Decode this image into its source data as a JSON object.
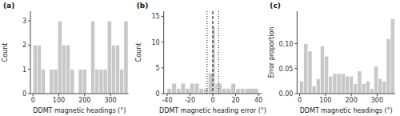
{
  "chart_data": [
    {
      "type": "histogram",
      "title": "(a)",
      "xlabel": "DDMT magnetic headings (°)",
      "ylabel": "Count",
      "bins": [
        0,
        16,
        32,
        48,
        64,
        80,
        96,
        112,
        128,
        144,
        160,
        176,
        192,
        208,
        224,
        240,
        256,
        272,
        288,
        304,
        320,
        336,
        352,
        368
      ],
      "values": [
        2,
        2,
        1,
        0,
        1,
        1,
        3,
        2,
        2,
        1,
        0,
        1,
        1,
        0,
        3,
        1,
        1,
        1,
        3,
        2,
        2,
        1,
        3
      ],
      "color": "#c8c8c8",
      "xlim": [
        -10,
        370
      ],
      "ylim": [
        0,
        3.4
      ],
      "xticks": [
        0,
        100,
        200,
        300
      ],
      "yticks": [
        0,
        1,
        2,
        3
      ],
      "grid": false
    },
    {
      "type": "histogram",
      "title": "(b)",
      "xlabel": "DDMT magnetic heading error (°)",
      "ylabel": "Count",
      "bins": [
        -40,
        -36,
        -32,
        -28,
        -24,
        -20,
        -16,
        -12,
        -8,
        -4,
        0,
        2,
        4,
        8,
        12,
        16,
        20,
        24,
        28,
        40
      ],
      "values": [
        1,
        2,
        1,
        2,
        1,
        2,
        2,
        1,
        1,
        4,
        13,
        2,
        2,
        1,
        1,
        2,
        1,
        1,
        1
      ],
      "color": "#c8c8c8",
      "xlim": [
        -43,
        43
      ],
      "ylim": [
        0,
        16
      ],
      "xticks": [
        -40,
        -20,
        0,
        20,
        40
      ],
      "yticks": [
        0,
        5,
        10,
        15
      ],
      "vlines": [
        {
          "value": 0,
          "line_style": "dashed"
        },
        {
          "value": -5,
          "line_style": "dotted"
        },
        {
          "value": 5,
          "line_style": "dotted"
        }
      ],
      "grid": false
    },
    {
      "type": "histogram",
      "title": "(c)",
      "xlabel": "DDMT magnetic headings (°)",
      "ylabel": "Error proportion",
      "bins": [
        0,
        16,
        32,
        48,
        64,
        80,
        96,
        112,
        128,
        144,
        160,
        176,
        192,
        208,
        224,
        240,
        256,
        272,
        288,
        304,
        320,
        336,
        352,
        368
      ],
      "values": [
        0.025,
        0.1,
        0.085,
        0.015,
        0.03,
        0.095,
        0.075,
        0.035,
        0.04,
        0.04,
        0.04,
        0.035,
        0.035,
        0.02,
        0.045,
        0.02,
        0.025,
        0.01,
        0.055,
        0.03,
        0.025,
        0.11,
        0.15
      ],
      "color": "#c8c8c8",
      "xlim": [
        -10,
        370
      ],
      "ylim": [
        0,
        0.165
      ],
      "xticks": [
        0,
        100,
        200,
        300
      ],
      "yticks": [
        {
          "value": 0,
          "label": "0.00"
        },
        0.05,
        {
          "value": 0.1,
          "label": "0.10"
        }
      ],
      "grid": false
    }
  ]
}
